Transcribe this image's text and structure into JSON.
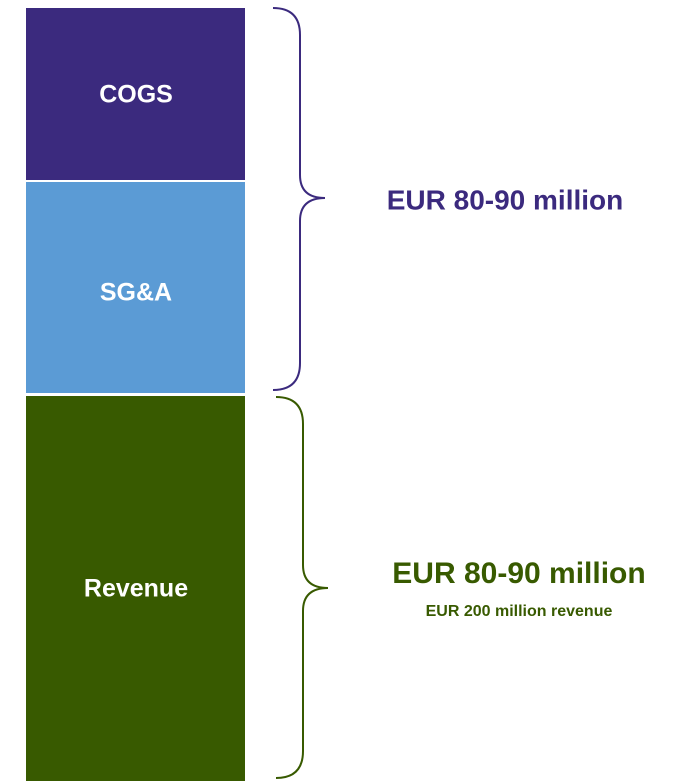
{
  "blocks": [
    {
      "label": "COGS"
    },
    {
      "label": "SG&A"
    },
    {
      "label": "Revenue"
    }
  ],
  "braces": [
    {
      "label": "EUR 80-90 million"
    },
    {
      "label": "EUR 80-90 million",
      "sublabel": "EUR 200 million revenue"
    }
  ]
}
